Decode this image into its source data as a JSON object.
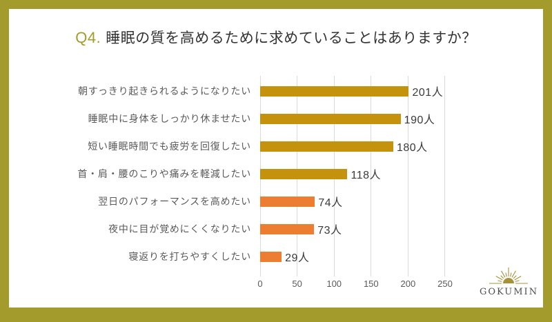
{
  "card": {
    "border_color": "#a39b2b",
    "background": "#ffffff"
  },
  "title": {
    "prefix": "Q4.",
    "text": "睡眠の質を高めるために求めていることはありますか？",
    "prefix_color": "#a39b2b",
    "text_color": "#333333"
  },
  "chart_data": {
    "type": "bar",
    "orientation": "horizontal",
    "title": "Q4. 睡眠の質を高めるために求めていることはありますか？",
    "categories": [
      "朝すっきり起きられるようになりたい",
      "睡眠中に身体をしっかり休ませたい",
      "短い睡眠時間でも疲労を回復したい",
      "首・肩・腰のこりや痛みを軽減したい",
      "翌日のパフォーマンスを高めたい",
      "夜中に目が覚めにくくなりたい",
      "寝返りを打ちやすくしたい"
    ],
    "values": [
      201,
      190,
      180,
      118,
      74,
      73,
      29
    ],
    "value_labels": [
      "201人",
      "190人",
      "180人",
      "118人",
      "74人",
      "73人",
      "29人"
    ],
    "series_colors": [
      "#c5920e",
      "#c5920e",
      "#c5920e",
      "#c5920e",
      "#ed7d31",
      "#ed7d31",
      "#ed7d31"
    ],
    "unit": "人",
    "xlim": [
      0,
      250
    ],
    "x_ticks": [
      "0",
      "50",
      "100",
      "150",
      "200",
      "250"
    ],
    "grid": true,
    "gridline_color": "#d9d9d9",
    "legend": "none"
  },
  "logo": {
    "icon": "sunburst-icon",
    "icon_color": "#a9913c",
    "text": "GOKUMIN",
    "text_color": "#4d4d4d"
  }
}
